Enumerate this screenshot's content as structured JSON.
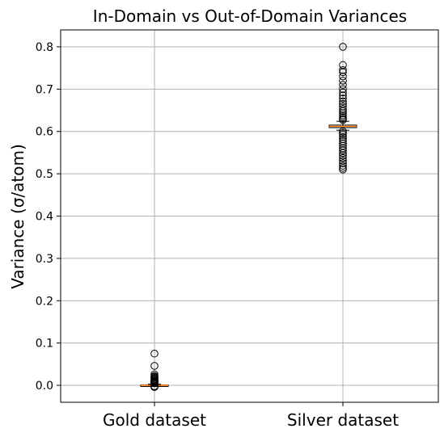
{
  "chart_data": {
    "type": "box",
    "title": "In-Domain vs Out-of-Domain Variances",
    "xlabel": "",
    "ylabel": "Variance (σ/atom)",
    "ylim": [
      -0.04,
      0.84
    ],
    "yticks": [
      "0.0",
      "0.1",
      "0.2",
      "0.3",
      "0.4",
      "0.5",
      "0.6",
      "0.7",
      "0.8"
    ],
    "ytick_values": [
      0.0,
      0.1,
      0.2,
      0.3,
      0.4,
      0.5,
      0.6,
      0.7,
      0.8
    ],
    "grid": true,
    "categories": [
      "Gold dataset",
      "Silver dataset"
    ],
    "boxes": [
      {
        "name": "Gold dataset",
        "q1": -0.001,
        "median": 0.0,
        "q3": 0.001,
        "whisker_low": -0.002,
        "whisker_high": 0.003,
        "outliers": [
          0.075,
          0.046,
          0.026,
          0.022,
          0.02,
          0.018,
          0.016,
          0.014,
          0.012,
          0.011,
          0.01,
          0.009,
          0.008,
          0.007,
          0.006,
          0.005,
          -0.002,
          -0.003,
          -0.004
        ]
      },
      {
        "name": "Silver dataset",
        "q1": 0.609,
        "median": 0.612,
        "q3": 0.615,
        "whisker_low": 0.603,
        "whisker_high": 0.624,
        "outliers": [
          0.8,
          0.757,
          0.745,
          0.74,
          0.73,
          0.72,
          0.71,
          0.7,
          0.692,
          0.685,
          0.678,
          0.671,
          0.665,
          0.659,
          0.653,
          0.648,
          0.643,
          0.638,
          0.634,
          0.63,
          0.627,
          0.6,
          0.596,
          0.592,
          0.587,
          0.582,
          0.577,
          0.572,
          0.566,
          0.56,
          0.555,
          0.549,
          0.543,
          0.537,
          0.531,
          0.525,
          0.519,
          0.514,
          0.51
        ]
      }
    ],
    "colors": {
      "median": "#ff7f0e",
      "box": "#000000",
      "grid": "#b0b0b0"
    }
  }
}
